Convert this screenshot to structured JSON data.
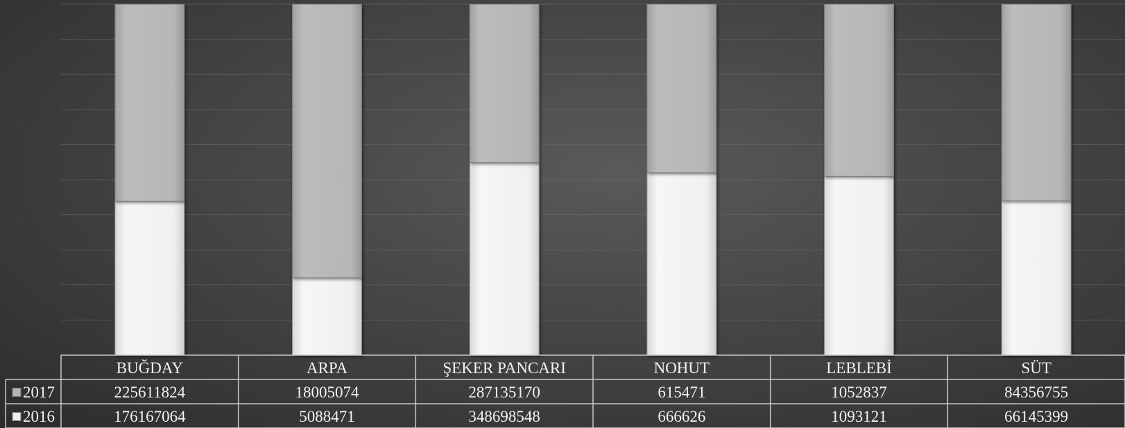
{
  "chart_data": {
    "type": "bar",
    "stacked": "percent",
    "categories": [
      "BUĞDAY",
      "ARPA",
      "ŞEKER PANCARI",
      "NOHUT",
      "LEBLEBİ",
      "SÜT"
    ],
    "series": [
      {
        "name": "2017",
        "values": [
          225611824,
          18005074,
          287135170,
          615471,
          1052837,
          84356755
        ],
        "color": "#b4b4b4"
      },
      {
        "name": "2016",
        "values": [
          176167064,
          5088471,
          348698548,
          666626,
          1093121,
          66145399
        ],
        "color": "#ededed"
      }
    ],
    "ylim": [
      0,
      100
    ],
    "grid": true,
    "legend": "data-table"
  }
}
